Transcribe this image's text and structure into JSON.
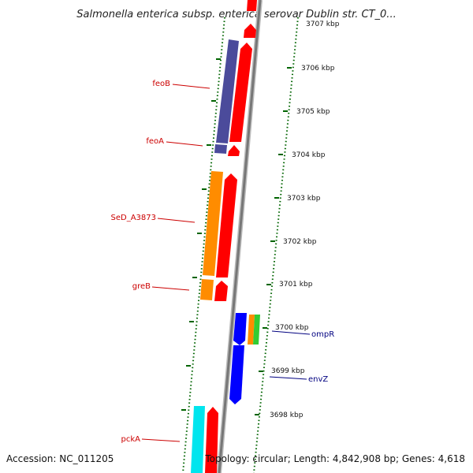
{
  "title": "Salmonella enterica subsp. enterica serovar Dublin str. CT_0...",
  "footer": {
    "accession": "Accession: NC_011205",
    "topology": "Topology: circular; Length: 4,842,908 bp; Genes: 4,618"
  },
  "scale_labels": [
    "3707 kbp",
    "3706 kbp",
    "3705 kbp",
    "3704 kbp",
    "3703 kbp",
    "3702 kbp",
    "3701 kbp",
    "3700 kbp",
    "3699 kbp",
    "3698 kbp"
  ],
  "gene_labels": [
    {
      "text": "feoB",
      "color": "#cc0000"
    },
    {
      "text": "feoA",
      "color": "#cc0000"
    },
    {
      "text": "SeD_A3873",
      "color": "#cc0000"
    },
    {
      "text": "greB",
      "color": "#cc0000"
    },
    {
      "text": "ompR",
      "color": "#000080"
    },
    {
      "text": "envZ",
      "color": "#000080"
    },
    {
      "text": "pckA",
      "color": "#cc0000"
    }
  ],
  "colors": {
    "backbone": "#888888",
    "cds_forward": "#ff0000",
    "cds_reverse": "#ff0000",
    "feo_cog": "#4b4b9b",
    "orange_cog": "#ff8c00",
    "blue_cog": "#0000ff",
    "green_cog": "#33cc33",
    "cyan_cog": "#00e5ee",
    "gc_skew_dots": "#006400"
  }
}
